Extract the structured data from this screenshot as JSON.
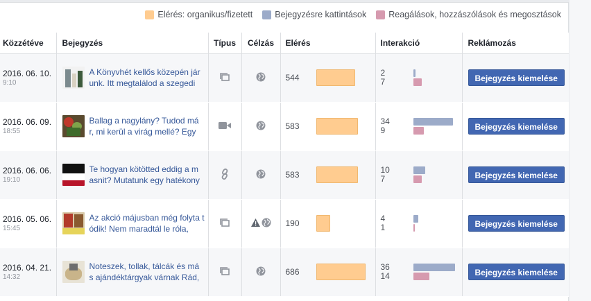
{
  "legend": {
    "items": [
      {
        "label": "Elérés: organikus/fizetett",
        "color": "#ffcc90"
      },
      {
        "label": "Bejegyzésre kattintások",
        "color": "#9cabc9"
      },
      {
        "label": "Reagálások, hozzászólások és megosztások",
        "color": "#d69aaf"
      }
    ]
  },
  "table": {
    "headers": [
      "Közzétéve",
      "Bejegyzés",
      "Típus",
      "Célzás",
      "Elérés",
      "Interakció",
      "Reklámozás"
    ],
    "boost_label": "Bejegyzés kiemelése",
    "rows": [
      {
        "date": "2016. 06. 10.",
        "time": "9:10",
        "text": "A Könyvhét kellős közepén jár unk. Itt megtalálod a szegedi",
        "type": "album-icon",
        "targeting": [
          "globe-icon"
        ],
        "reach": 544,
        "clicks": 2,
        "reactions": 7,
        "thumb": "books"
      },
      {
        "date": "2016. 06. 09.",
        "time": "18:55",
        "text": "Ballag a nagylány? Tudod má r, mi kerül a virág mellé? Egy",
        "type": "video-icon",
        "targeting": [
          "globe-icon"
        ],
        "reach": 583,
        "clicks": 34,
        "reactions": 9,
        "thumb": "flowers"
      },
      {
        "date": "2016. 06. 06.",
        "time": "19:10",
        "text": "Te hogyan kötötted eddig a m asnit? Mutatunk egy hatékony",
        "type": "link-icon",
        "targeting": [
          "globe-icon"
        ],
        "reach": 583,
        "clicks": 10,
        "reactions": 7,
        "thumb": "ribbon"
      },
      {
        "date": "2016. 05. 06.",
        "time": "15:45",
        "text": "Az akció májusban még folyta tódik! Nem maradtál le róla,",
        "type": "album-icon",
        "targeting": [
          "warning-icon",
          "globe-icon"
        ],
        "reach": 190,
        "clicks": 4,
        "reactions": 1,
        "thumb": "sale"
      },
      {
        "date": "2016. 04. 21.",
        "time": "14:32",
        "text": "Noteszek, tollak, tálcák és má s ajándéktárgyak várnak Rád,",
        "type": "album-icon",
        "targeting": [
          "globe-icon"
        ],
        "reach": 686,
        "clicks": 36,
        "reactions": 14,
        "thumb": "gifts"
      }
    ]
  }
}
